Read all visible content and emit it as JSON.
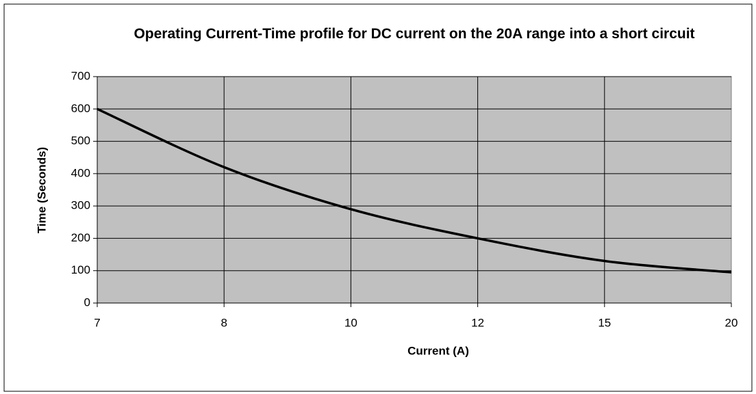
{
  "chart_data": {
    "type": "line",
    "title": "Operating Current-Time profile for DC current on the 20A range into a short circuit",
    "x_label": "Current (A)",
    "y_label": "Time (Seconds)",
    "categories": [
      "7",
      "8",
      "10",
      "12",
      "15",
      "20"
    ],
    "series": [
      {
        "name": "Time",
        "color": "#000000",
        "values": [
          600,
          420,
          290,
          200,
          130,
          95
        ]
      }
    ],
    "ylim": [
      0,
      700
    ],
    "yticks": [
      0,
      100,
      200,
      300,
      400,
      500,
      600,
      700
    ],
    "grid": true,
    "smooth": true,
    "plot_background": "#c0c0c0",
    "legend": false
  }
}
